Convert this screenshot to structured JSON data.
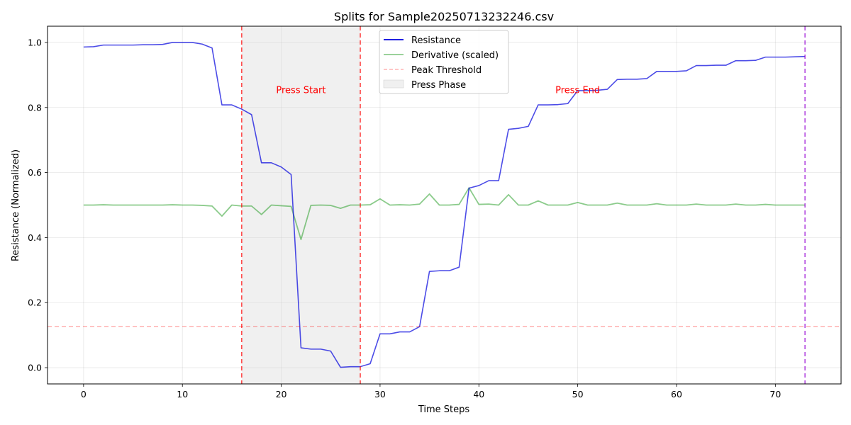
{
  "chart_data": {
    "type": "line",
    "title": "Splits for Sample20250713232246.csv",
    "xlabel": "Time Steps",
    "ylabel": "Resistance (Normalized)",
    "xlim": [
      -3.65,
      76.65
    ],
    "ylim": [
      -0.05,
      1.05
    ],
    "xticks": [
      0,
      10,
      20,
      30,
      40,
      50,
      60,
      70
    ],
    "yticks": [
      0.0,
      0.2,
      0.4,
      0.6,
      0.8,
      1.0
    ],
    "grid": true,
    "legend_position": "top-center",
    "series": [
      {
        "name": "Resistance",
        "color": "#0000dd",
        "x": [
          0,
          1,
          2,
          3,
          4,
          5,
          6,
          7,
          8,
          9,
          10,
          11,
          12,
          13,
          14,
          15,
          16,
          17,
          18,
          19,
          20,
          21,
          22,
          23,
          24,
          25,
          26,
          27,
          28,
          29,
          30,
          31,
          32,
          33,
          34,
          35,
          36,
          37,
          38,
          39,
          40,
          41,
          42,
          43,
          44,
          45,
          46,
          47,
          48,
          49,
          50,
          51,
          52,
          53,
          54,
          55,
          56,
          57,
          58,
          59,
          60,
          61,
          62,
          63,
          64,
          65,
          66,
          67,
          68,
          69,
          70,
          71,
          72,
          73
        ],
        "values": [
          0.986,
          0.987,
          0.992,
          0.992,
          0.992,
          0.992,
          0.993,
          0.993,
          0.994,
          1.0,
          1.0,
          1.0,
          0.995,
          0.983,
          0.808,
          0.808,
          0.795,
          0.778,
          0.63,
          0.63,
          0.617,
          0.594,
          0.061,
          0.057,
          0.057,
          0.051,
          0.001,
          0.003,
          0.003,
          0.012,
          0.104,
          0.104,
          0.11,
          0.11,
          0.126,
          0.296,
          0.298,
          0.298,
          0.309,
          0.552,
          0.56,
          0.575,
          0.575,
          0.733,
          0.736,
          0.742,
          0.808,
          0.808,
          0.809,
          0.812,
          0.852,
          0.852,
          0.853,
          0.856,
          0.886,
          0.887,
          0.887,
          0.889,
          0.911,
          0.911,
          0.911,
          0.913,
          0.929,
          0.929,
          0.93,
          0.93,
          0.944,
          0.944,
          0.945,
          0.955,
          0.955,
          0.955,
          0.956,
          0.957
        ]
      },
      {
        "name": "Derivative (scaled)",
        "color": "#2ca02c",
        "x": [
          0,
          1,
          2,
          3,
          4,
          5,
          6,
          7,
          8,
          9,
          10,
          11,
          12,
          13,
          14,
          15,
          16,
          17,
          18,
          19,
          20,
          21,
          22,
          23,
          24,
          25,
          26,
          27,
          28,
          29,
          30,
          31,
          32,
          33,
          34,
          35,
          36,
          37,
          38,
          39,
          40,
          41,
          42,
          43,
          44,
          45,
          46,
          47,
          48,
          49,
          50,
          51,
          52,
          53,
          54,
          55,
          56,
          57,
          58,
          59,
          60,
          61,
          62,
          63,
          64,
          65,
          66,
          67,
          68,
          69,
          70,
          71,
          72,
          73
        ],
        "values": [
          0.5,
          0.5,
          0.501,
          0.5,
          0.5,
          0.5,
          0.5,
          0.5,
          0.5,
          0.501,
          0.5,
          0.5,
          0.499,
          0.497,
          0.466,
          0.5,
          0.497,
          0.497,
          0.471,
          0.5,
          0.498,
          0.496,
          0.394,
          0.499,
          0.5,
          0.499,
          0.49,
          0.5,
          0.5,
          0.501,
          0.519,
          0.5,
          0.501,
          0.5,
          0.503,
          0.534,
          0.5,
          0.5,
          0.502,
          0.553,
          0.502,
          0.503,
          0.5,
          0.532,
          0.5,
          0.5,
          0.513,
          0.5,
          0.5,
          0.5,
          0.508,
          0.5,
          0.5,
          0.5,
          0.506,
          0.5,
          0.5,
          0.5,
          0.504,
          0.5,
          0.5,
          0.5,
          0.503,
          0.5,
          0.5,
          0.5,
          0.503,
          0.5,
          0.5,
          0.502,
          0.5,
          0.5,
          0.5,
          0.5
        ]
      }
    ],
    "peak_threshold": {
      "name": "Peak Threshold",
      "y": 0.127,
      "color": "#ff0000"
    },
    "press_phase": {
      "name": "Press Phase",
      "x_start": 16,
      "x_end": 28,
      "color": "#d3d3d3"
    },
    "vlines": [
      {
        "x": 16,
        "color": "#ff0000"
      },
      {
        "x": 28,
        "color": "#ff0000"
      },
      {
        "x": 73,
        "color": "#9400d3"
      }
    ],
    "annotations": [
      {
        "text": "Press Start",
        "x": 22,
        "y": 0.855,
        "color": "#ff0000"
      },
      {
        "text": "Press End",
        "x": 50,
        "y": 0.855,
        "color": "#ff0000"
      }
    ]
  }
}
